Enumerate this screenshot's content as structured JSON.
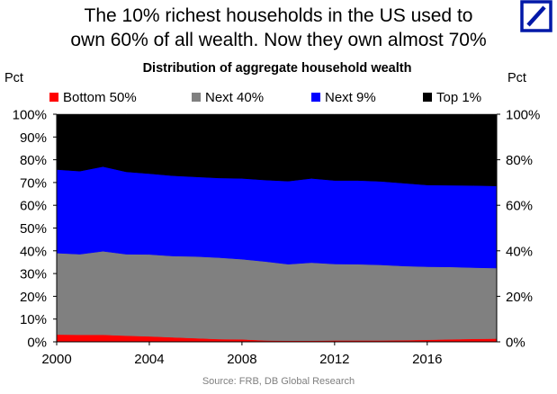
{
  "headline": {
    "line1": "The 10% richest households in the US used to",
    "line2": "own 60% of all wealth. Now they own almost 70%"
  },
  "logo": {
    "name": "deutsche-bank-slash-logo",
    "color": "#0018a8"
  },
  "source": "Source: FRB, DB Global Research",
  "chart_data": {
    "type": "area",
    "stacked": true,
    "title": "Distribution of aggregate household wealth",
    "ylabel_left": "Pct",
    "ylabel_right": "Pct",
    "x": [
      2000,
      2001,
      2002,
      2003,
      2004,
      2005,
      2006,
      2007,
      2008,
      2009,
      2010,
      2011,
      2012,
      2013,
      2014,
      2015,
      2016,
      2017,
      2018,
      2019
    ],
    "xlim": [
      2000,
      2019
    ],
    "xticks": [
      2000,
      2004,
      2008,
      2012,
      2016
    ],
    "xtick_labels": [
      "2000",
      "2004",
      "2008",
      "2012",
      "2016"
    ],
    "ylim": [
      0,
      100
    ],
    "left_ticks": [
      0,
      10,
      20,
      30,
      40,
      50,
      60,
      70,
      80,
      90,
      100
    ],
    "left_tick_labels": [
      "0%",
      "10%",
      "20%",
      "30%",
      "40%",
      "50%",
      "60%",
      "70%",
      "80%",
      "90%",
      "100%"
    ],
    "right_ticks": [
      0,
      20,
      40,
      60,
      80,
      100
    ],
    "right_tick_labels": [
      "0%",
      "20%",
      "40%",
      "60%",
      "80%",
      "100%"
    ],
    "series": [
      {
        "name": "Bottom 50%",
        "color": "#ff0000",
        "values": [
          3.2,
          3.1,
          3.1,
          2.7,
          2.4,
          2.0,
          1.6,
          1.2,
          1.1,
          0.6,
          0.5,
          0.5,
          0.6,
          0.6,
          0.6,
          0.7,
          0.9,
          1.1,
          1.3,
          1.4
        ]
      },
      {
        "name": "Next 40%",
        "color": "#808080",
        "values": [
          35.8,
          35.4,
          36.7,
          35.8,
          36.0,
          35.7,
          35.9,
          35.8,
          35.2,
          34.7,
          33.6,
          34.3,
          33.6,
          33.5,
          33.2,
          32.6,
          32.1,
          31.8,
          31.3,
          31.0
        ]
      },
      {
        "name": "Next 9%",
        "color": "#0000ff",
        "values": [
          36.7,
          36.5,
          37.2,
          36.2,
          35.5,
          35.3,
          35.0,
          35.0,
          35.5,
          35.8,
          36.5,
          37.0,
          36.7,
          36.8,
          36.7,
          36.4,
          35.9,
          35.9,
          36.1,
          36.1
        ]
      },
      {
        "name": "Top 1%",
        "color": "#000000",
        "values": [
          24.3,
          25.0,
          23.0,
          25.3,
          26.1,
          27.0,
          27.5,
          28.0,
          28.2,
          28.9,
          29.4,
          28.2,
          29.1,
          29.1,
          29.5,
          30.3,
          31.1,
          31.2,
          31.3,
          31.5
        ]
      }
    ],
    "legend": "top"
  }
}
